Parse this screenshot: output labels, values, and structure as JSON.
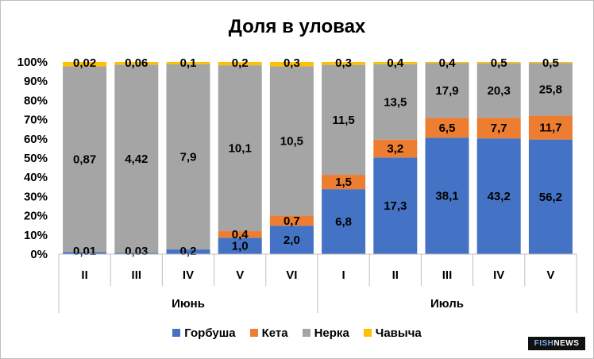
{
  "chart_data": {
    "type": "bar",
    "stacked": "percent",
    "title": "Доля в уловах",
    "xlabel": "",
    "ylabel": "",
    "ylim": [
      0,
      100
    ],
    "y_ticks": [
      "0%",
      "10%",
      "20%",
      "30%",
      "40%",
      "50%",
      "60%",
      "70%",
      "80%",
      "90%",
      "100%"
    ],
    "grid": false,
    "legend_position": "bottom",
    "categories": [
      "II",
      "III",
      "IV",
      "V",
      "VI",
      "I",
      "II",
      "III",
      "IV",
      "V"
    ],
    "groups": [
      {
        "label": "Июнь",
        "count": 5
      },
      {
        "label": "Июль",
        "count": 5
      }
    ],
    "series": [
      {
        "name": "Горбуша",
        "color": "#4472c4",
        "values": [
          0.01,
          0.03,
          0.2,
          1.0,
          2.0,
          6.8,
          17.3,
          38.1,
          43.2,
          56.2
        ],
        "labels": [
          "0,01",
          "0,03",
          "0,2",
          "1,0",
          "2,0",
          "6,8",
          "17,3",
          "38,1",
          "43,2",
          "56,2"
        ]
      },
      {
        "name": "Кета",
        "color": "#ed7d31",
        "values": [
          0,
          0,
          0,
          0.4,
          0.7,
          1.5,
          3.2,
          6.5,
          7.7,
          11.7
        ],
        "labels": [
          "",
          "",
          "",
          "0,4",
          "0,7",
          "1,5",
          "3,2",
          "6,5",
          "7,7",
          "11,7"
        ]
      },
      {
        "name": "Нерка",
        "color": "#a5a5a5",
        "values": [
          0.87,
          4.42,
          7.9,
          10.1,
          10.5,
          11.5,
          13.5,
          17.9,
          20.3,
          25.8
        ],
        "labels": [
          "0,87",
          "4,42",
          "7,9",
          "10,1",
          "10,5",
          "11,5",
          "13,5",
          "17,9",
          "20,3",
          "25,8"
        ]
      },
      {
        "name": "Чавыча",
        "color": "#ffc000",
        "values": [
          0.02,
          0.06,
          0.1,
          0.2,
          0.3,
          0.3,
          0.4,
          0.4,
          0.5,
          0.5
        ],
        "labels": [
          "0,02",
          "0,06",
          "0,1",
          "0,2",
          "0,3",
          "0,3",
          "0,4",
          "0,4",
          "0,5",
          "0,5"
        ]
      }
    ]
  },
  "watermark": {
    "part1": "FISH",
    "part2": "NEWS"
  }
}
